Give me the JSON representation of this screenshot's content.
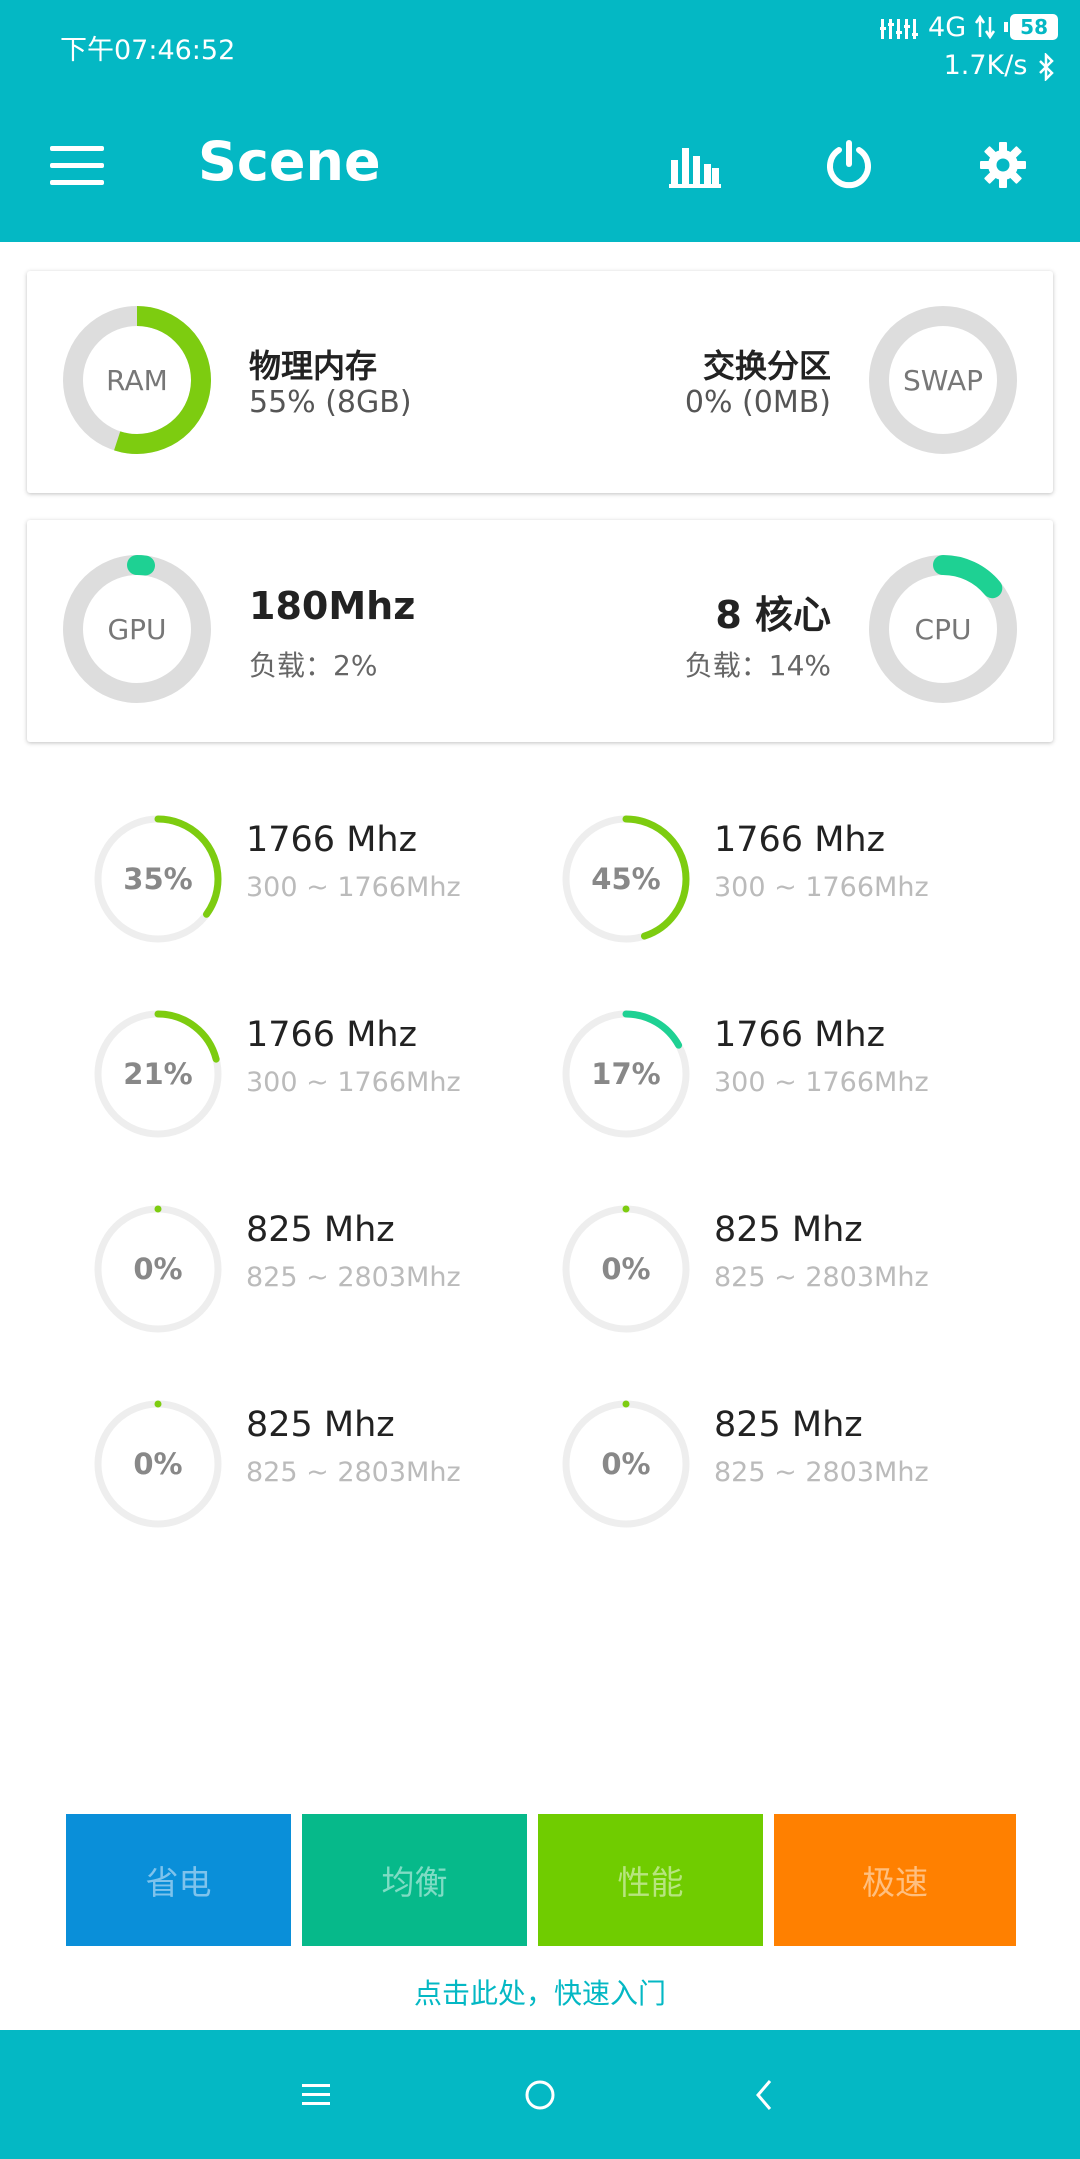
{
  "status_bar": {
    "time": "下午07:46:52",
    "network": "4G",
    "battery": "58",
    "speed": "1.7K/s"
  },
  "app_bar": {
    "title": "Scene",
    "icons": [
      "menu-icon",
      "bar-chart-icon",
      "power-icon",
      "gear-icon"
    ]
  },
  "memory": {
    "ram_label": "RAM",
    "ram_title": "物理内存",
    "ram_value": "55% (8GB)",
    "ram_percent": 55,
    "swap_label": "SWAP",
    "swap_title": "交换分区",
    "swap_value": "0% (0MB)",
    "swap_percent": 0
  },
  "processor": {
    "gpu_label": "GPU",
    "gpu_freq": "180Mhz",
    "gpu_load": "负载：2%",
    "gpu_percent": 2,
    "cpu_label": "CPU",
    "cpu_cores": "8 核心",
    "cpu_load": "负载：14%",
    "cpu_percent": 14
  },
  "cores": [
    {
      "percent_label": "35%",
      "percent": 35,
      "freq": "1766 Mhz",
      "range": "300 ~ 1766Mhz",
      "color": "#7dcc10"
    },
    {
      "percent_label": "45%",
      "percent": 45,
      "freq": "1766 Mhz",
      "range": "300 ~ 1766Mhz",
      "color": "#7dcc10"
    },
    {
      "percent_label": "21%",
      "percent": 21,
      "freq": "1766 Mhz",
      "range": "300 ~ 1766Mhz",
      "color": "#7dcc10"
    },
    {
      "percent_label": "17%",
      "percent": 17,
      "freq": "1766 Mhz",
      "range": "300 ~ 1766Mhz",
      "color": "#1ed193"
    },
    {
      "percent_label": "0%",
      "percent": 0,
      "freq": "825 Mhz",
      "range": "825 ~ 2803Mhz",
      "color": "#7dcc10"
    },
    {
      "percent_label": "0%",
      "percent": 0,
      "freq": "825 Mhz",
      "range": "825 ~ 2803Mhz",
      "color": "#7dcc10"
    },
    {
      "percent_label": "0%",
      "percent": 0,
      "freq": "825 Mhz",
      "range": "825 ~ 2803Mhz",
      "color": "#7dcc10"
    },
    {
      "percent_label": "0%",
      "percent": 0,
      "freq": "825 Mhz",
      "range": "825 ~ 2803Mhz",
      "color": "#7dcc10"
    }
  ],
  "modes": [
    {
      "label": "省电",
      "bg": "#0a8fd9",
      "fg": "#7fc3ec"
    },
    {
      "label": "均衡",
      "bg": "#06b98a",
      "fg": "#7fdcc4"
    },
    {
      "label": "性能",
      "bg": "#70cc00",
      "fg": "#b7e57f"
    },
    {
      "label": "极速",
      "bg": "#ff8000",
      "fg": "#ffbf7f"
    }
  ],
  "guide_link": "点击此处，快速入门",
  "colors": {
    "accent": "#04b8c4",
    "ram_ring": "#7dcc10",
    "gpu_ring": "#1ed193",
    "cpu_ring": "#1ed193",
    "track": "#dddddd",
    "core_track": "#eeeeee"
  },
  "nav_bar": {
    "icons": [
      "recents-icon",
      "home-icon",
      "back-icon"
    ]
  }
}
